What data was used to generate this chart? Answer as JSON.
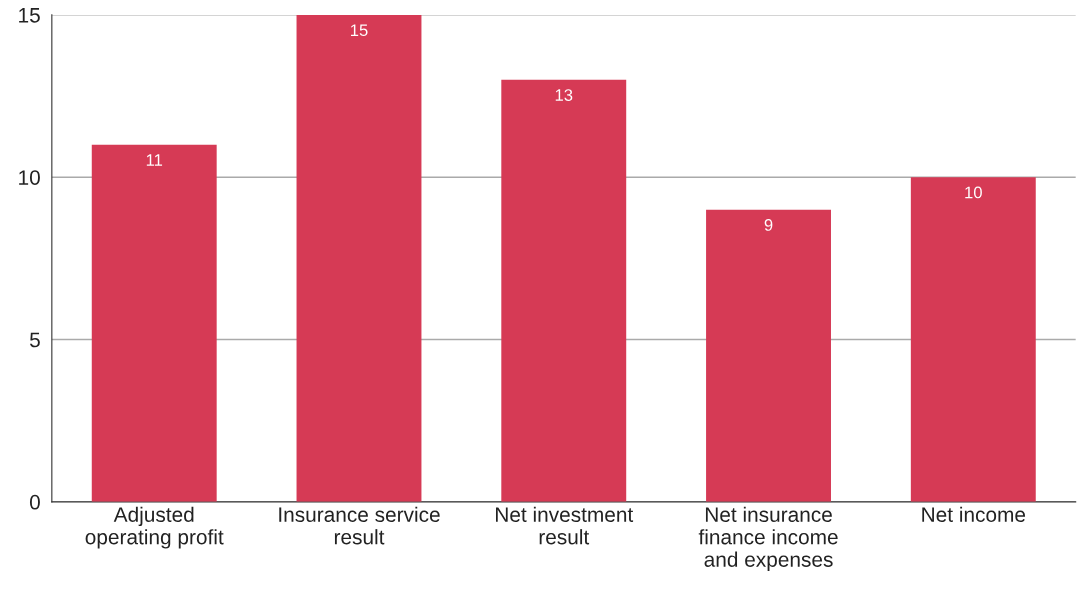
{
  "chart_data": {
    "type": "bar",
    "categories": [
      "Adjusted\noperating profit",
      "Insurance service\nresult",
      "Net investment\nresult",
      "Net insurance\nfinance income\nand expenses",
      "Net income"
    ],
    "values": [
      11,
      15,
      13,
      9,
      10
    ],
    "color": "#d63a55",
    "ylim": [
      0,
      15
    ],
    "yticks": [
      0,
      5,
      10,
      15
    ],
    "grid": "y",
    "data_labels": true
  }
}
